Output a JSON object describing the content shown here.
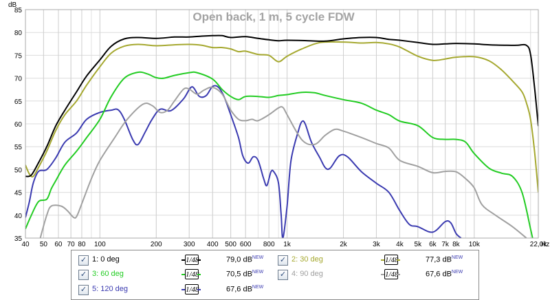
{
  "chart_data": {
    "type": "line",
    "title": "Open back, 1 m, 5 cycle FDW",
    "ylabel": "dB",
    "xlabel": "Hz",
    "x_scale": "log",
    "xlim": [
      40,
      22000
    ],
    "ylim": [
      35,
      85
    ],
    "y_ticks": [
      35,
      40,
      45,
      50,
      55,
      60,
      65,
      70,
      75,
      80,
      85
    ],
    "x_ticks": [
      {
        "v": 40,
        "label": "40"
      },
      {
        "v": 50,
        "label": "50"
      },
      {
        "v": 60,
        "label": "60"
      },
      {
        "v": 70,
        "label": "70"
      },
      {
        "v": 80,
        "label": "80"
      },
      {
        "v": 100,
        "label": "100"
      },
      {
        "v": 200,
        "label": "200"
      },
      {
        "v": 300,
        "label": "300"
      },
      {
        "v": 400,
        "label": "400"
      },
      {
        "v": 500,
        "label": "500"
      },
      {
        "v": 600,
        "label": "600"
      },
      {
        "v": 800,
        "label": "800"
      },
      {
        "v": 1000,
        "label": "1k"
      },
      {
        "v": 2000,
        "label": "2k"
      },
      {
        "v": 3000,
        "label": "3k"
      },
      {
        "v": 4000,
        "label": "4k"
      },
      {
        "v": 5000,
        "label": "5k"
      },
      {
        "v": 6000,
        "label": "6k"
      },
      {
        "v": 7000,
        "label": "7k"
      },
      {
        "v": 8000,
        "label": "8k"
      },
      {
        "v": 10000,
        "label": "10k"
      },
      {
        "v": 22000,
        "label": "22,0k"
      }
    ],
    "grid": true,
    "series": [
      {
        "name": "1: 0 deg",
        "color": "#000000",
        "level": "79,0 dB",
        "points": [
          [
            40,
            48.5
          ],
          [
            43,
            48.8
          ],
          [
            47,
            51.5
          ],
          [
            52,
            55
          ],
          [
            58,
            59.5
          ],
          [
            65,
            63
          ],
          [
            75,
            67
          ],
          [
            85,
            70.5
          ],
          [
            100,
            74
          ],
          [
            115,
            77
          ],
          [
            135,
            78.6
          ],
          [
            160,
            78.9
          ],
          [
            200,
            78.7
          ],
          [
            250,
            79
          ],
          [
            300,
            79
          ],
          [
            350,
            79.2
          ],
          [
            400,
            79.3
          ],
          [
            450,
            79.3
          ],
          [
            500,
            78.9
          ],
          [
            600,
            79.1
          ],
          [
            700,
            78.7
          ],
          [
            800,
            78.4
          ],
          [
            900,
            78.2
          ],
          [
            1000,
            78.3
          ],
          [
            1300,
            78.2
          ],
          [
            1600,
            78.1
          ],
          [
            2000,
            78.6
          ],
          [
            2500,
            78.9
          ],
          [
            3000,
            78.9
          ],
          [
            3500,
            78.5
          ],
          [
            4000,
            78.3
          ],
          [
            5000,
            77.8
          ],
          [
            6000,
            77.4
          ],
          [
            7000,
            77.5
          ],
          [
            8000,
            77.6
          ],
          [
            10000,
            77.5
          ],
          [
            12000,
            77.3
          ],
          [
            15000,
            77.2
          ],
          [
            17000,
            77.2
          ],
          [
            19000,
            77.2
          ],
          [
            20000,
            75.2
          ],
          [
            21000,
            68
          ],
          [
            22000,
            59.5
          ]
        ]
      },
      {
        "name": "2: 30 deg",
        "color": "#a5a82f",
        "level": "77,3 dB",
        "points": [
          [
            40,
            51
          ],
          [
            42,
            49
          ],
          [
            44,
            48.5
          ],
          [
            47,
            50.5
          ],
          [
            52,
            54
          ],
          [
            58,
            58.5
          ],
          [
            65,
            62
          ],
          [
            75,
            65
          ],
          [
            85,
            68.5
          ],
          [
            100,
            72.5
          ],
          [
            115,
            75.5
          ],
          [
            135,
            77
          ],
          [
            160,
            77.4
          ],
          [
            200,
            77.1
          ],
          [
            250,
            77.3
          ],
          [
            300,
            77.4
          ],
          [
            350,
            77.2
          ],
          [
            400,
            76.7
          ],
          [
            450,
            76.7
          ],
          [
            500,
            76.4
          ],
          [
            550,
            75.8
          ],
          [
            600,
            75.9
          ],
          [
            700,
            75.2
          ],
          [
            800,
            75
          ],
          [
            900,
            73.6
          ],
          [
            1000,
            74.8
          ],
          [
            1200,
            76.4
          ],
          [
            1500,
            77.8
          ],
          [
            2000,
            77.9
          ],
          [
            2500,
            77.7
          ],
          [
            3000,
            77.8
          ],
          [
            3500,
            77.5
          ],
          [
            4000,
            76.8
          ],
          [
            5000,
            74.8
          ],
          [
            6000,
            73.9
          ],
          [
            7000,
            74.2
          ],
          [
            8000,
            74.6
          ],
          [
            10000,
            74.7
          ],
          [
            12000,
            73.8
          ],
          [
            14000,
            71.8
          ],
          [
            16000,
            69.4
          ],
          [
            18000,
            67
          ],
          [
            19000,
            64.6
          ],
          [
            20000,
            61
          ],
          [
            21000,
            54
          ],
          [
            22000,
            45
          ]
        ]
      },
      {
        "name": "3: 60 deg",
        "color": "#22cc22",
        "level": "70,5 dB",
        "points": [
          [
            40,
            37
          ],
          [
            43,
            40
          ],
          [
            47,
            43
          ],
          [
            52,
            43.5
          ],
          [
            55,
            45.8
          ],
          [
            58,
            47.5
          ],
          [
            65,
            51
          ],
          [
            75,
            54
          ],
          [
            85,
            57
          ],
          [
            100,
            61
          ],
          [
            115,
            66
          ],
          [
            135,
            70
          ],
          [
            160,
            71.3
          ],
          [
            180,
            70.9
          ],
          [
            200,
            70.1
          ],
          [
            220,
            70
          ],
          [
            250,
            70.6
          ],
          [
            300,
            71.2
          ],
          [
            330,
            71.2
          ],
          [
            400,
            69.8
          ],
          [
            450,
            67.5
          ],
          [
            500,
            66
          ],
          [
            550,
            65.3
          ],
          [
            600,
            66
          ],
          [
            700,
            66
          ],
          [
            800,
            65.8
          ],
          [
            900,
            66.2
          ],
          [
            1000,
            66.4
          ],
          [
            1200,
            66.9
          ],
          [
            1400,
            66.8
          ],
          [
            1600,
            66.2
          ],
          [
            2000,
            65.3
          ],
          [
            2500,
            64.5
          ],
          [
            3000,
            63
          ],
          [
            3500,
            62
          ],
          [
            4000,
            60.6
          ],
          [
            5000,
            59.6
          ],
          [
            6000,
            57
          ],
          [
            7000,
            56.6
          ],
          [
            8000,
            56.6
          ],
          [
            9000,
            56
          ],
          [
            10000,
            53.5
          ],
          [
            12000,
            50.3
          ],
          [
            14000,
            49.2
          ],
          [
            16000,
            48.5
          ],
          [
            18000,
            45
          ],
          [
            20000,
            37
          ],
          [
            21000,
            33
          ]
        ]
      },
      {
        "name": "4: 90 deg",
        "color": "#a0a0a0",
        "level": "67,6 dB",
        "points": [
          [
            48,
            35
          ],
          [
            52,
            40
          ],
          [
            55,
            42
          ],
          [
            62,
            42
          ],
          [
            67,
            41
          ],
          [
            72,
            39.6
          ],
          [
            75,
            39.7
          ],
          [
            80,
            42.5
          ],
          [
            90,
            48
          ],
          [
            100,
            52
          ],
          [
            120,
            57
          ],
          [
            140,
            61
          ],
          [
            170,
            64.3
          ],
          [
            190,
            64
          ],
          [
            210,
            62.5
          ],
          [
            230,
            63
          ],
          [
            250,
            65
          ],
          [
            280,
            67.6
          ],
          [
            300,
            67.6
          ],
          [
            330,
            66.5
          ],
          [
            360,
            67.4
          ],
          [
            400,
            68
          ],
          [
            450,
            66.5
          ],
          [
            500,
            63
          ],
          [
            550,
            61
          ],
          [
            600,
            60.7
          ],
          [
            650,
            61
          ],
          [
            700,
            60.7
          ],
          [
            800,
            62
          ],
          [
            900,
            63.5
          ],
          [
            950,
            63.6
          ],
          [
            1000,
            62
          ],
          [
            1200,
            56.5
          ],
          [
            1400,
            55.5
          ],
          [
            1600,
            57.5
          ],
          [
            1800,
            58.8
          ],
          [
            2000,
            58.4
          ],
          [
            2500,
            57
          ],
          [
            3000,
            55.7
          ],
          [
            3500,
            54.7
          ],
          [
            4000,
            52
          ],
          [
            5000,
            50.7
          ],
          [
            6000,
            49.3
          ],
          [
            7000,
            49.6
          ],
          [
            8000,
            49.5
          ],
          [
            9000,
            48
          ],
          [
            10000,
            46
          ],
          [
            11000,
            42.3
          ],
          [
            13000,
            40
          ],
          [
            16000,
            37.5
          ],
          [
            19000,
            35
          ]
        ]
      },
      {
        "name": "5: 120 deg",
        "color": "#3a3ab0",
        "level": "67,6 dB",
        "points": [
          [
            40,
            39.5
          ],
          [
            42,
            43
          ],
          [
            44,
            47
          ],
          [
            47,
            49.6
          ],
          [
            52,
            50
          ],
          [
            58,
            52.5
          ],
          [
            65,
            56
          ],
          [
            75,
            58
          ],
          [
            85,
            61
          ],
          [
            100,
            62.5
          ],
          [
            115,
            63
          ],
          [
            125,
            63.1
          ],
          [
            135,
            61
          ],
          [
            150,
            56.5
          ],
          [
            160,
            55.5
          ],
          [
            175,
            58.3
          ],
          [
            190,
            61
          ],
          [
            210,
            63.2
          ],
          [
            240,
            62.9
          ],
          [
            280,
            65.5
          ],
          [
            310,
            68.1
          ],
          [
            340,
            66
          ],
          [
            370,
            66.2
          ],
          [
            400,
            68.2
          ],
          [
            430,
            68
          ],
          [
            460,
            66
          ],
          [
            500,
            62
          ],
          [
            550,
            57
          ],
          [
            580,
            53
          ],
          [
            620,
            51.4
          ],
          [
            660,
            52.8
          ],
          [
            700,
            52
          ],
          [
            750,
            48
          ],
          [
            780,
            46.5
          ],
          [
            820,
            49.5
          ],
          [
            850,
            49.5
          ],
          [
            900,
            47
          ],
          [
            930,
            40
          ],
          [
            950,
            35
          ],
          [
            1000,
            42
          ],
          [
            1050,
            52
          ],
          [
            1150,
            58.5
          ],
          [
            1200,
            60.5
          ],
          [
            1250,
            60
          ],
          [
            1350,
            56
          ],
          [
            1500,
            52.5
          ],
          [
            1600,
            50.4
          ],
          [
            1700,
            50.3
          ],
          [
            1900,
            53
          ],
          [
            2100,
            52.8
          ],
          [
            2500,
            49.5
          ],
          [
            3000,
            47
          ],
          [
            3500,
            45
          ],
          [
            4000,
            41
          ],
          [
            4500,
            38
          ],
          [
            5000,
            37.5
          ],
          [
            6000,
            36.3
          ],
          [
            7000,
            38.6
          ],
          [
            7500,
            38.3
          ],
          [
            8000,
            36
          ],
          [
            8500,
            35
          ]
        ]
      }
    ]
  },
  "legend": {
    "checkmark": "✓",
    "smoothing_label": "1/48",
    "new_tag": "NEW",
    "entries": [
      {
        "label": "1: 0 deg",
        "level": "79,0 dB",
        "color": "#000000"
      },
      {
        "label": "2: 30 deg",
        "level": "77,3 dB",
        "color": "#a5a82f"
      },
      {
        "label": "3: 60 deg",
        "level": "70,5 dB",
        "color": "#22cc22"
      },
      {
        "label": "4: 90 deg",
        "level": "67,6 dB",
        "color": "#a0a0a0"
      },
      {
        "label": "5: 120 deg",
        "level": "67,6 dB",
        "color": "#3a3ab0"
      }
    ]
  }
}
